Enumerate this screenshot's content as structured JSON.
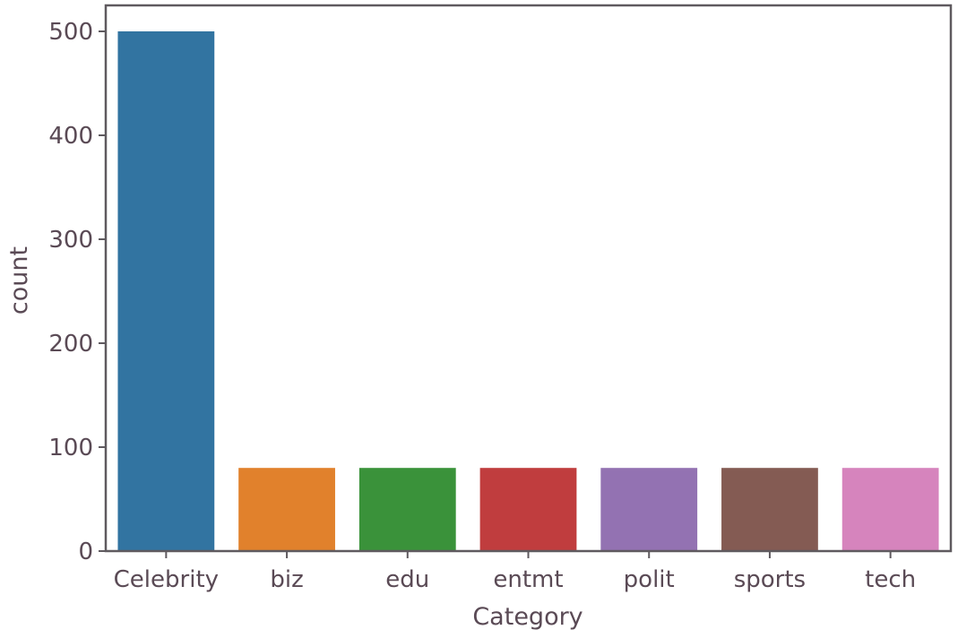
{
  "chart_data": {
    "type": "bar",
    "categories": [
      "Celebrity",
      "biz",
      "edu",
      "entmt",
      "polit",
      "sports",
      "tech"
    ],
    "values": [
      500,
      80,
      80,
      80,
      80,
      80,
      80
    ],
    "colors": [
      "#3274a1",
      "#e1812c",
      "#3a923a",
      "#c03d3e",
      "#9372b2",
      "#845b53",
      "#d684bd"
    ],
    "xlabel": "Category",
    "ylabel": "count",
    "ylim": [
      0,
      525
    ],
    "yticks": [
      0,
      100,
      200,
      300,
      400,
      500
    ],
    "grid": false,
    "legend": "none"
  }
}
